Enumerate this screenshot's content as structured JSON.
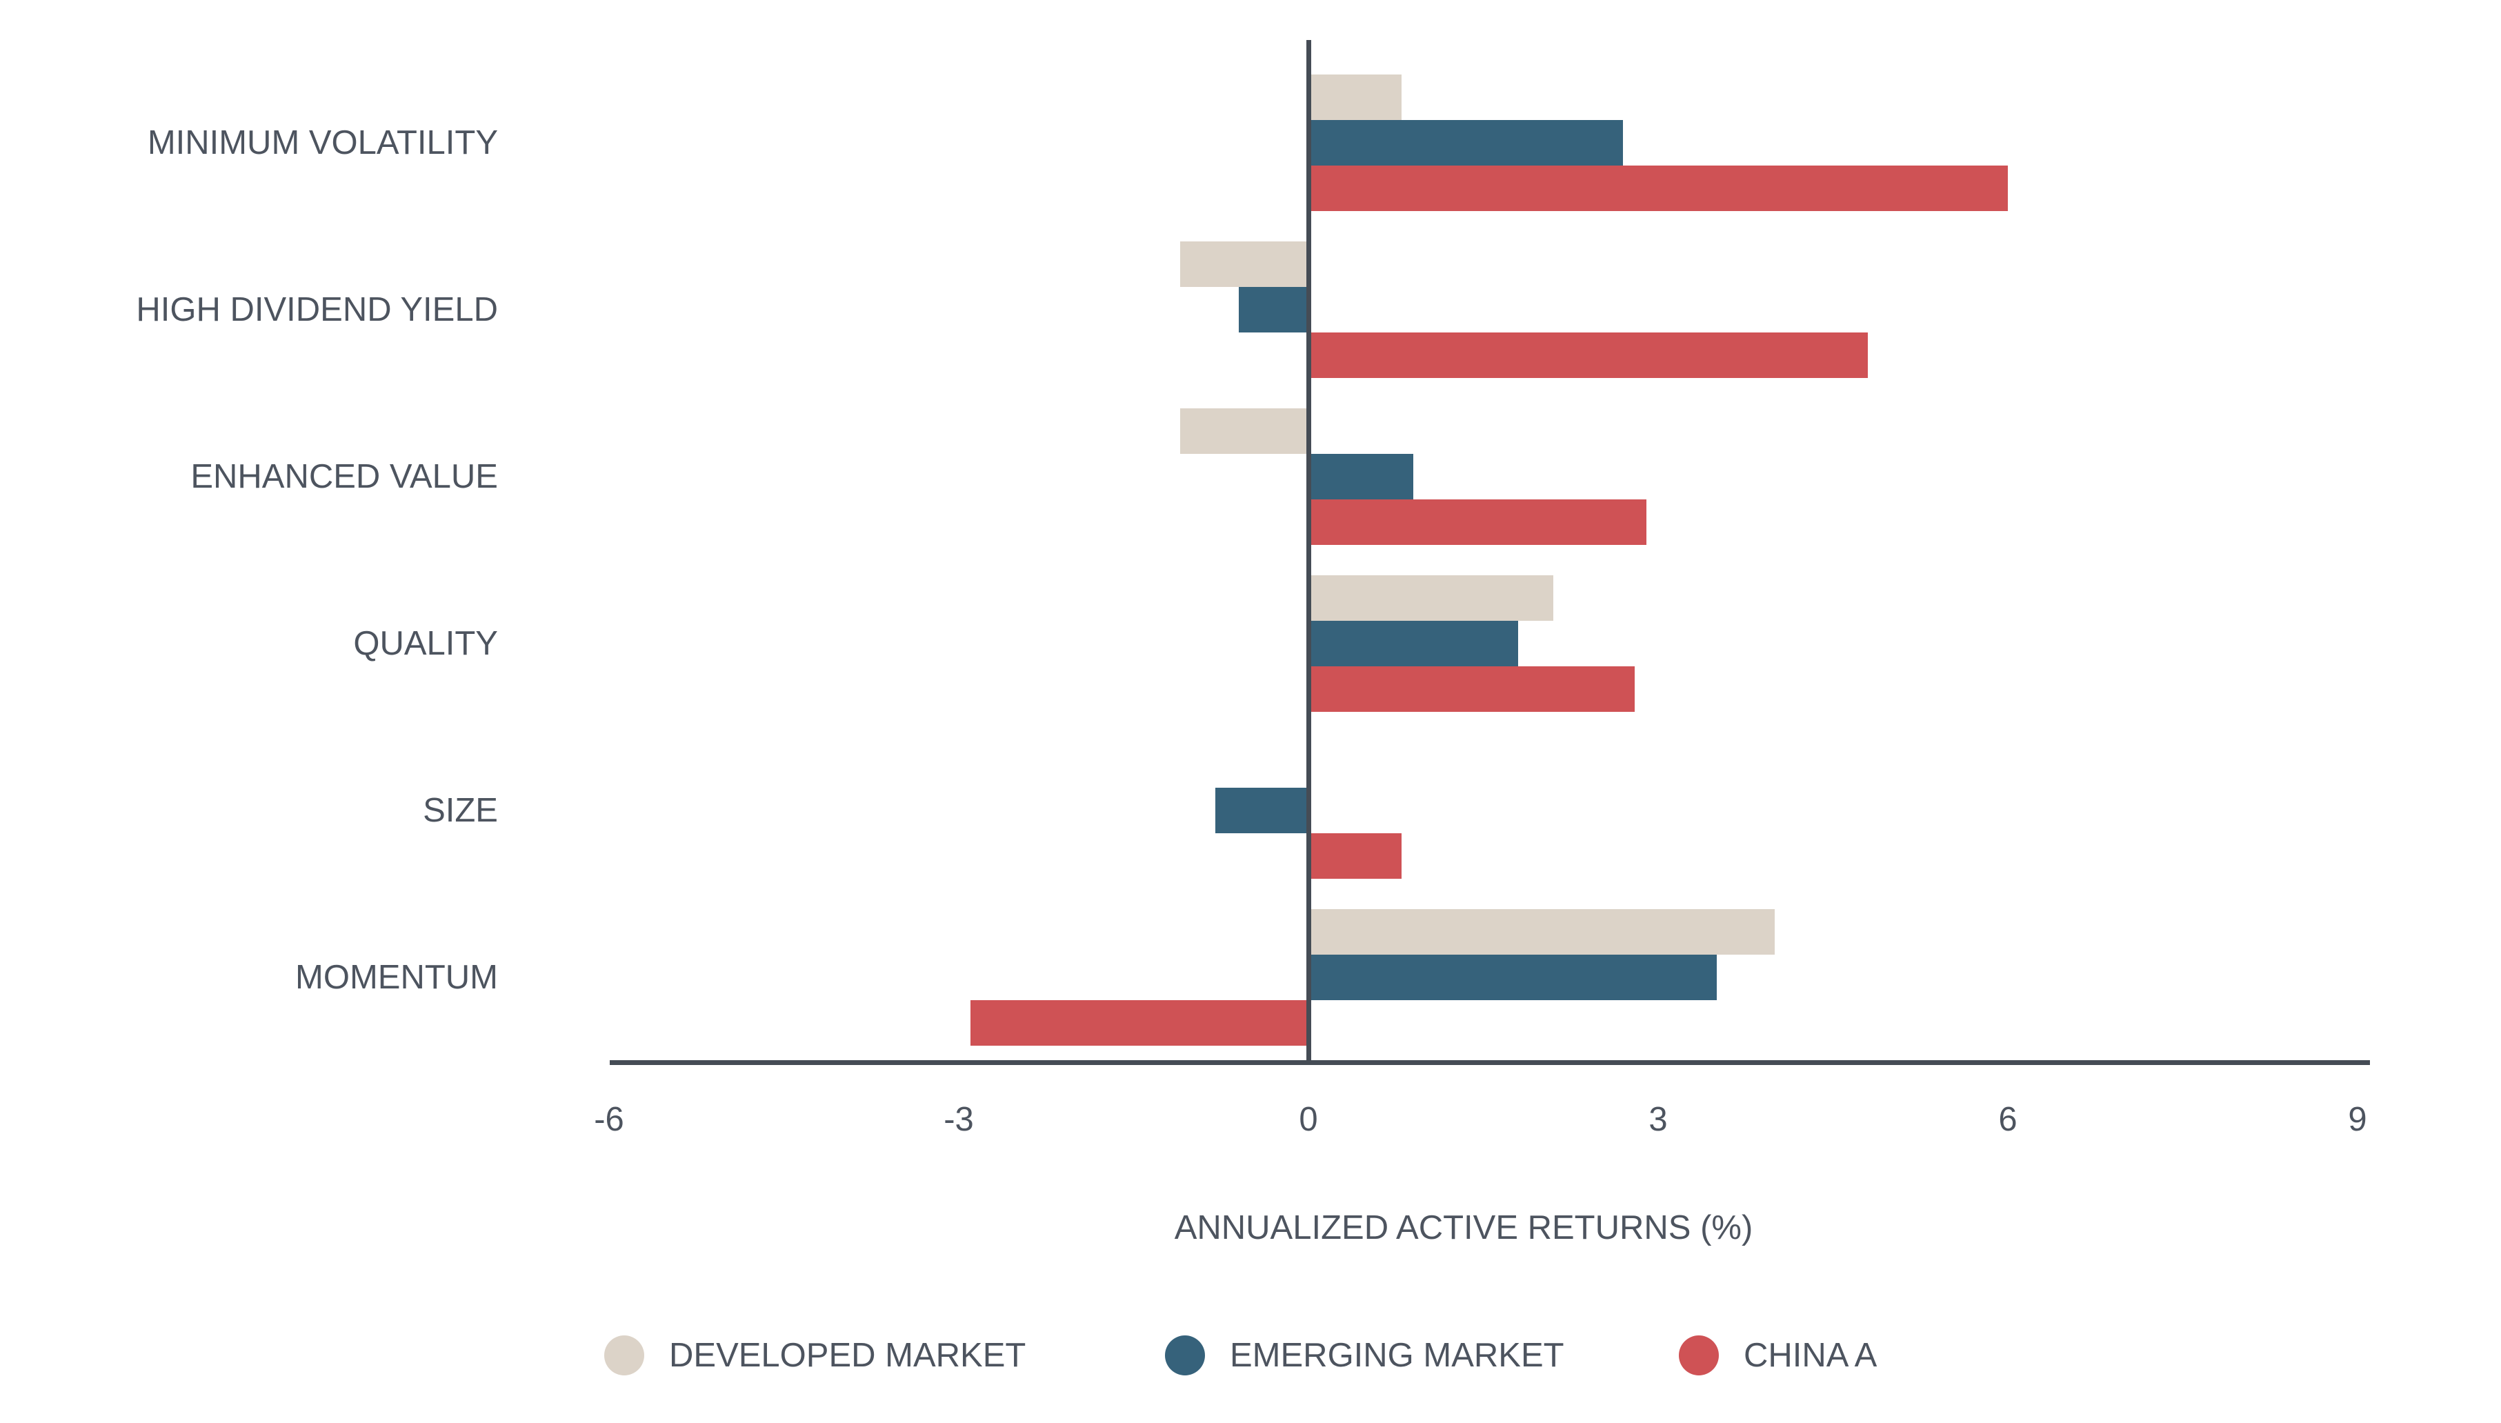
{
  "chart_data": {
    "type": "bar",
    "orientation": "horizontal",
    "xlabel": "ANNUALIZED ACTIVE RETURNS (%)",
    "xlim": [
      -6,
      9
    ],
    "xticks": [
      -6,
      -3,
      0,
      3,
      6,
      9
    ],
    "categories": [
      "MINIMUM VOLATILITY",
      "HIGH DIVIDEND YIELD",
      "ENHANCED VALUE",
      "QUALITY",
      "SIZE",
      "MOMENTUM"
    ],
    "series": [
      {
        "name": "DEVELOPED MARKET",
        "color": "#dcd3c8",
        "values": [
          0.8,
          -1.1,
          -1.1,
          2.1,
          0,
          4.0
        ]
      },
      {
        "name": "EMERGING MARKET",
        "color": "#36627b",
        "values": [
          2.7,
          -0.6,
          0.9,
          1.8,
          -0.8,
          3.5
        ]
      },
      {
        "name": "CHINA A",
        "color": "#cf5255",
        "values": [
          6.0,
          4.8,
          2.9,
          2.8,
          0.8,
          -2.9
        ]
      }
    ],
    "legend_position": "bottom",
    "grid": false,
    "axis_color": "#454c55",
    "text_color": "#4d545f",
    "background_color": "#ffffff"
  }
}
